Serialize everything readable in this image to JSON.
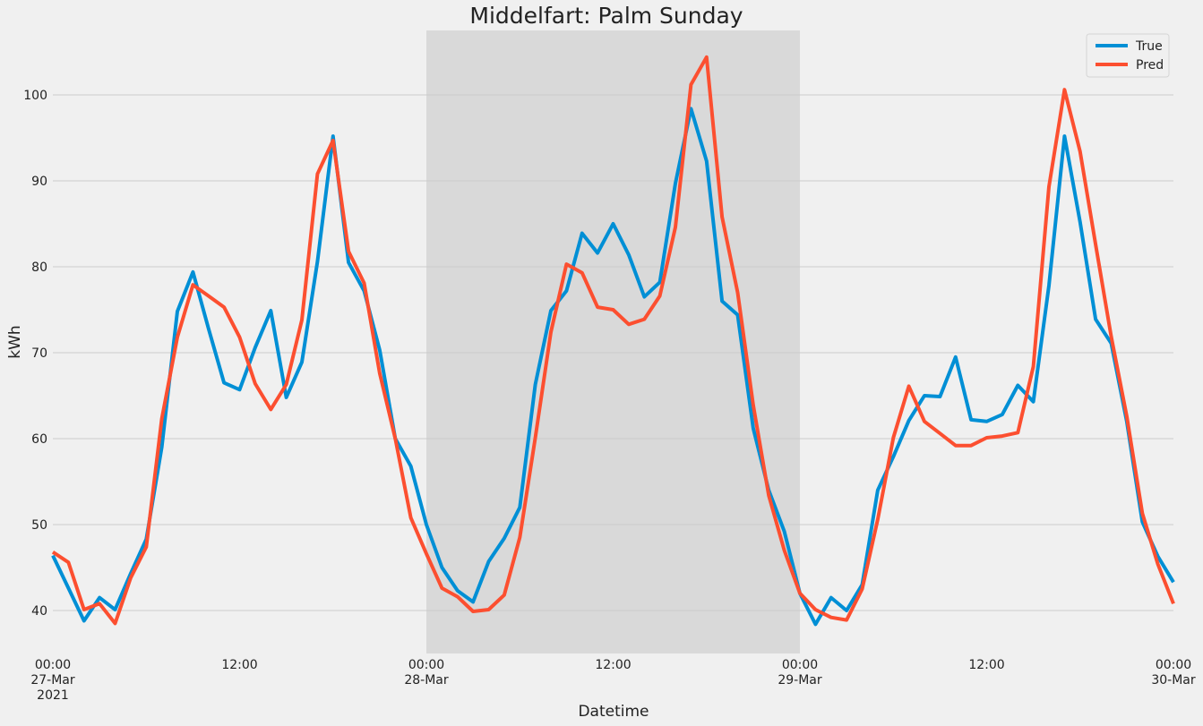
{
  "chart_data": {
    "type": "line",
    "title": "Middelfart: Palm Sunday",
    "xlabel": "Datetime",
    "ylabel": "kWh",
    "xlim_hours": [
      0,
      72
    ],
    "ylim": [
      35,
      107.5
    ],
    "y_ticks": [
      40,
      50,
      60,
      70,
      80,
      90,
      100
    ],
    "x_ticks": [
      {
        "hour": 0,
        "lines": [
          "00:00",
          "27-Mar",
          "2021"
        ]
      },
      {
        "hour": 12,
        "lines": [
          "12:00"
        ]
      },
      {
        "hour": 24,
        "lines": [
          "00:00",
          "28-Mar"
        ]
      },
      {
        "hour": 36,
        "lines": [
          "12:00"
        ]
      },
      {
        "hour": 48,
        "lines": [
          "00:00",
          "29-Mar"
        ]
      },
      {
        "hour": 60,
        "lines": [
          "12:00"
        ]
      },
      {
        "hour": 72,
        "lines": [
          "00:00",
          "30-Mar"
        ]
      }
    ],
    "highlight": {
      "start_hour": 24,
      "end_hour": 48,
      "color": "#d9d9d9"
    },
    "grid": true,
    "legend_position": "top-right",
    "series": [
      {
        "name": "True",
        "color": "#008fd5",
        "values": [
          46.4,
          42.6,
          38.8,
          41.5,
          40.1,
          44.3,
          48.3,
          59.0,
          74.8,
          79.4,
          72.8,
          66.5,
          65.7,
          70.6,
          74.9,
          64.8,
          68.9,
          80.6,
          95.2,
          80.5,
          77.2,
          70.3,
          60.0,
          56.8,
          50.0,
          45.0,
          42.3,
          41.0,
          45.7,
          48.4,
          52.0,
          66.3,
          74.9,
          77.2,
          83.9,
          81.6,
          85.0,
          81.4,
          76.5,
          78.2,
          89.7,
          98.4,
          92.3,
          76.0,
          74.4,
          61.2,
          54.0,
          49.2,
          42.0,
          38.4,
          41.5,
          40.0,
          43.0,
          54.0,
          57.9,
          62.1,
          65.0,
          64.9,
          69.5,
          62.2,
          62.0,
          62.8,
          66.2,
          64.3,
          77.8,
          95.2,
          85.2,
          73.9,
          71.1,
          62.0,
          50.3,
          46.3,
          43.3
        ]
      },
      {
        "name": "Pred",
        "color": "#fc4f30",
        "values": [
          46.8,
          45.6,
          40.1,
          40.8,
          38.5,
          43.8,
          47.4,
          62.3,
          71.8,
          77.9,
          76.6,
          75.3,
          71.8,
          66.4,
          63.4,
          66.3,
          73.8,
          90.8,
          94.7,
          81.8,
          78.1,
          67.6,
          60.0,
          50.8,
          46.6,
          42.6,
          41.6,
          39.9,
          40.1,
          41.8,
          48.5,
          60.1,
          72.4,
          80.3,
          79.3,
          75.3,
          75.0,
          73.3,
          73.9,
          76.6,
          84.6,
          101.2,
          104.4,
          85.8,
          77.0,
          63.9,
          53.4,
          47.0,
          42.0,
          40.1,
          39.2,
          38.9,
          42.5,
          50.6,
          60.1,
          66.1,
          62.0,
          60.6,
          59.2,
          59.2,
          60.1,
          60.3,
          60.7,
          68.4,
          89.3,
          100.6,
          93.4,
          82.6,
          71.9,
          62.6,
          51.3,
          45.4,
          40.8
        ]
      }
    ]
  }
}
